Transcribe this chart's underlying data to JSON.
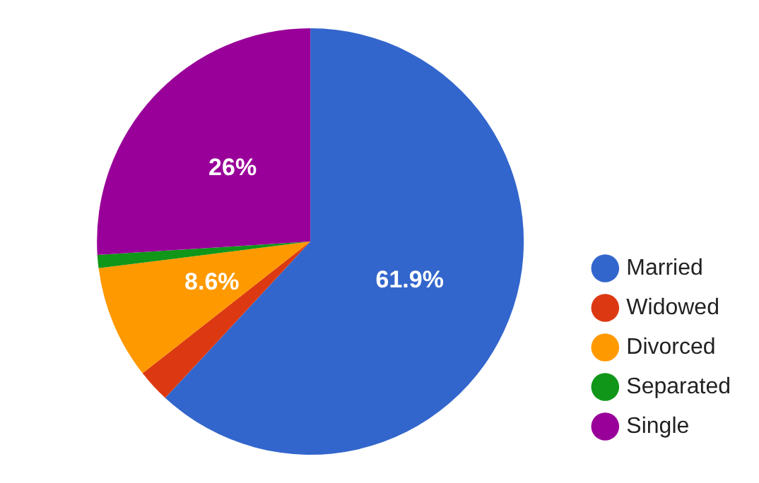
{
  "chart_data": {
    "type": "pie",
    "categories": [
      "Married",
      "Widowed",
      "Divorced",
      "Separated",
      "Single"
    ],
    "values": [
      61.9,
      2.5,
      8.6,
      1.0,
      26
    ],
    "colors": [
      "#3366cc",
      "#dc3912",
      "#ff9900",
      "#109618",
      "#990099"
    ],
    "value_labels": [
      "61.9%",
      null,
      "8.6%",
      null,
      "26%"
    ],
    "legend": "right"
  }
}
